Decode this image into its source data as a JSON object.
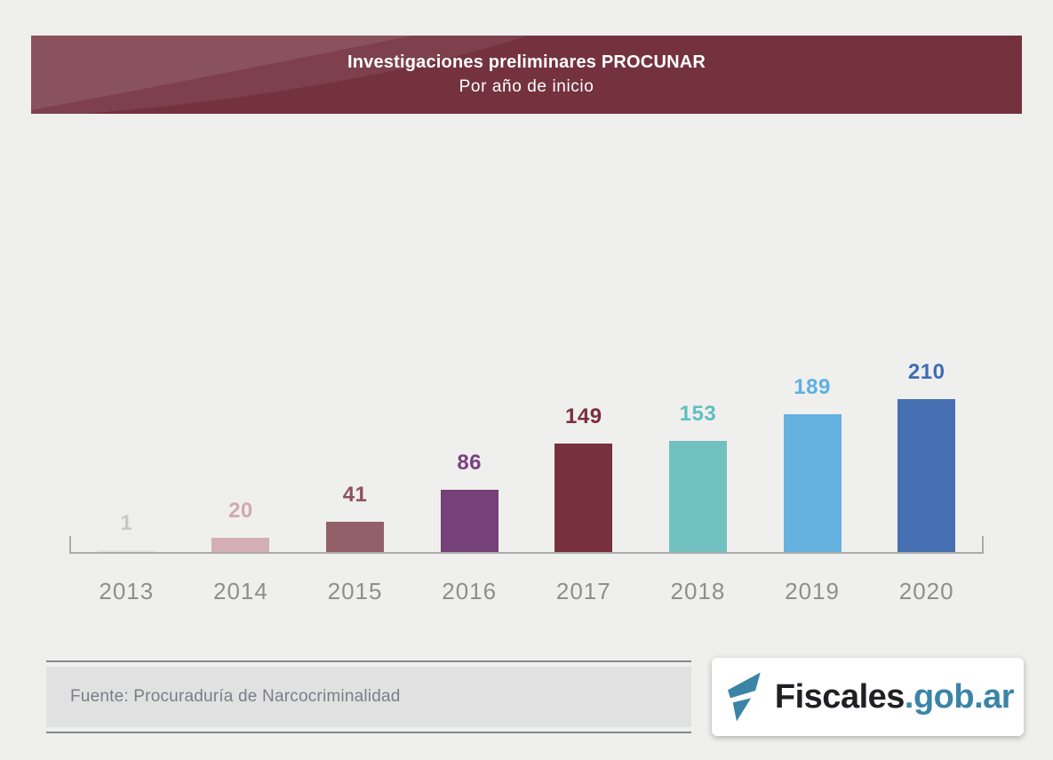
{
  "header": {
    "title": "Investigaciones preliminares PROCUNAR",
    "subtitle": "Por año de inicio",
    "background_color": "#74323f"
  },
  "chart_data": {
    "type": "bar",
    "title": "Investigaciones preliminares PROCUNAR",
    "subtitle": "Por año de inicio",
    "categories": [
      "2013",
      "2014",
      "2015",
      "2016",
      "2017",
      "2018",
      "2019",
      "2020"
    ],
    "values": [
      1,
      20,
      41,
      86,
      149,
      153,
      189,
      210
    ],
    "bar_colors": [
      "#e5e2e3",
      "#d3aeb5",
      "#93606a",
      "#764079",
      "#77313e",
      "#72c1c1",
      "#66b2df",
      "#4770b2"
    ],
    "label_colors": [
      "#c9c6c7",
      "#d0a9b1",
      "#8e515d",
      "#7b3f84",
      "#7b2e3d",
      "#5fc0bd",
      "#5cb1e1",
      "#3f6cb3"
    ],
    "xlabel": "",
    "ylabel": "",
    "ylim": [
      0,
      210
    ],
    "grid": false,
    "legend": false,
    "value_labels_shown": true,
    "axis_color": "#ababab",
    "category_label_color": "#8e8e8e"
  },
  "footer": {
    "source_label": "Fuente: Procuraduría de Narcocriminalidad"
  },
  "logo": {
    "icon": "fiscales-flag-icon",
    "brand": "Fiscales",
    "suffix": ".gob.ar",
    "brand_color": "#1f1f24",
    "accent_color": "#3b84a8"
  }
}
